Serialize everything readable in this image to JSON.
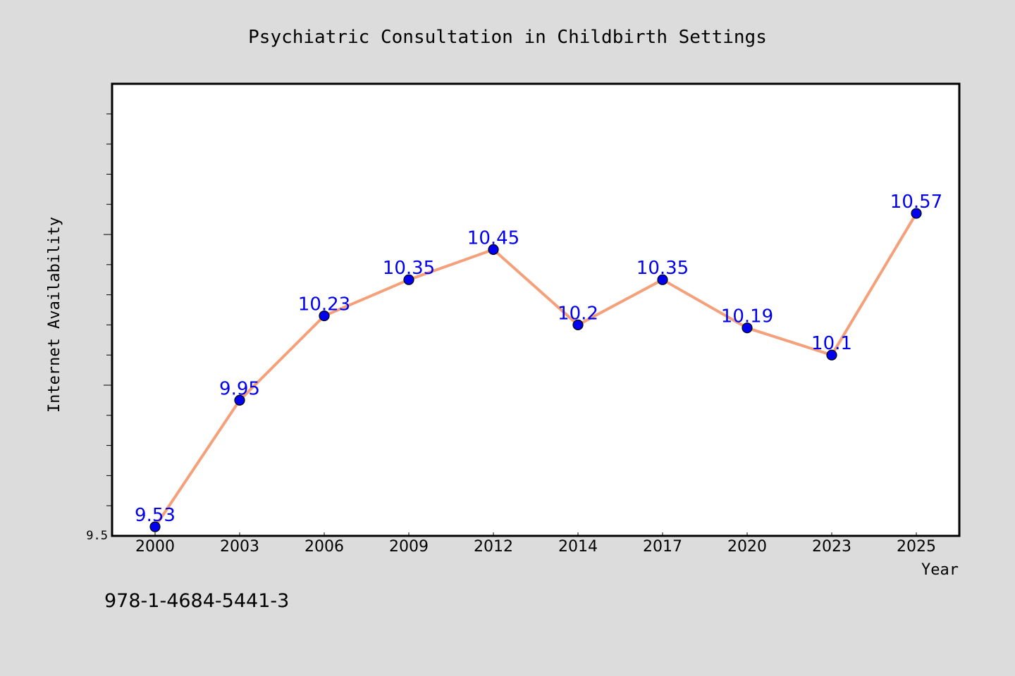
{
  "chart_data": {
    "type": "line",
    "title": "Psychiatric Consultation in Childbirth Settings",
    "xlabel": "Year",
    "ylabel": "Internet Availability",
    "categories": [
      "2000",
      "2003",
      "2006",
      "2009",
      "2012",
      "2014",
      "2017",
      "2020",
      "2023",
      "2025"
    ],
    "series": [
      {
        "values": [
          9.53,
          9.95,
          10.23,
          10.35,
          10.45,
          10.2,
          10.35,
          10.19,
          10.1,
          10.57
        ],
        "data_labels": [
          "9.53",
          "9.95",
          "10.23",
          "10.35",
          "10.45",
          "10.2",
          "10.35",
          "10.19",
          "10.1",
          "10.57"
        ]
      }
    ],
    "ylim": [
      9.5,
      11.0
    ],
    "y_tick_labels": [
      {
        "value": 9.5,
        "label": "9.5"
      }
    ],
    "grid": false,
    "colors": {
      "line": "#f4a07a",
      "marker": "#0000ee",
      "data_label": "#0000ee",
      "background": "#dcdcdc",
      "plot_area": "#ffffff"
    }
  },
  "footer": {
    "isbn": "978-1-4684-5441-3"
  }
}
